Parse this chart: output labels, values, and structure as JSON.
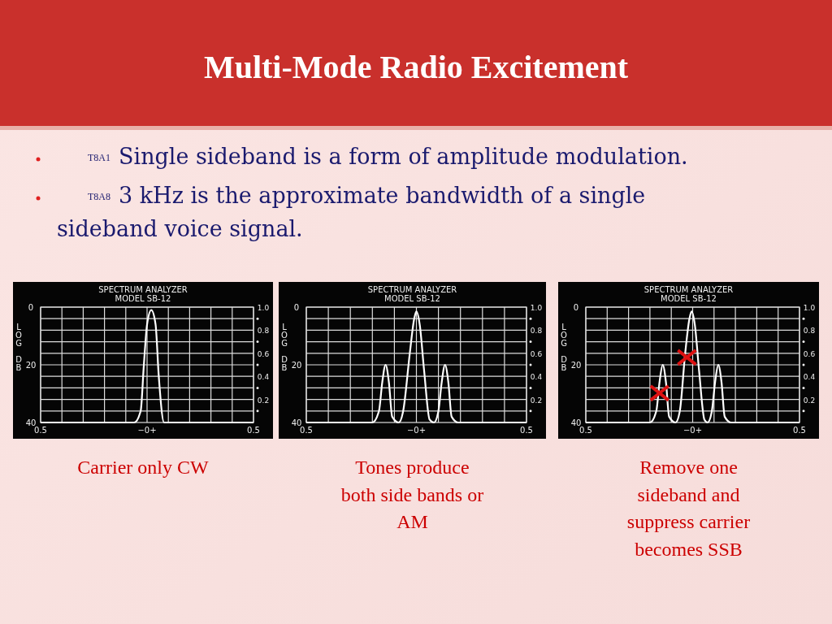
{
  "chart_data": [
    {
      "type": "other",
      "title": "Multi-Mode Radio Excitement",
      "annotations": [
        "T8A1",
        "Single sideband is a form of amplitude modulation.",
        "T8A8",
        "3 kHz is the approximate bandwidth of a single sideband voice signal."
      ]
    },
    {
      "type": "line",
      "title": "SPECTRUM ANALYZER",
      "subtitle": "MODEL SB-12",
      "ylabel": "LOG DB",
      "xlim": [
        -0.5,
        0.5
      ],
      "xticks": [
        {
          "value": -0.5,
          "label": "0.5"
        },
        {
          "value": -0.4,
          "label": null
        },
        {
          "value": -0.3,
          "label": null
        },
        {
          "value": -0.2,
          "label": null
        },
        {
          "value": -0.1,
          "label": null
        },
        {
          "value": 0,
          "label": "−0+"
        },
        {
          "value": 0.1,
          "label": null
        },
        {
          "value": 0.2,
          "label": null
        },
        {
          "value": 0.3,
          "label": null
        },
        {
          "value": 0.4,
          "label": null
        },
        {
          "value": 0.5,
          "label": "0.5"
        }
      ],
      "ylim": [
        40,
        0
      ],
      "yticks": [
        0,
        20,
        40
      ],
      "y2lim": [
        0,
        1
      ],
      "y2ticks": [
        {
          "value": 0.1,
          "label": null
        },
        {
          "value": 0.2,
          "label": "0.2"
        },
        {
          "value": 0.3,
          "label": null
        },
        {
          "value": 0.4,
          "label": "0.4"
        },
        {
          "value": 0.5,
          "label": null
        },
        {
          "value": 0.6,
          "label": "0.6"
        },
        {
          "value": 0.7,
          "label": null
        },
        {
          "value": 0.8,
          "label": "0.8"
        },
        {
          "value": 0.9,
          "label": null
        },
        {
          "value": 1,
          "label": "1.0"
        }
      ],
      "grid": true,
      "series": [
        {
          "color": "#ffffff",
          "x": [
            -0.5,
            -0.06,
            -0.03,
            -0.015,
            0,
            0.02,
            0.04,
            0.055,
            0.08,
            0.5
          ],
          "values": [
            40,
            40,
            36,
            20,
            6,
            1,
            6,
            24,
            40,
            40
          ]
        }
      ],
      "annotations": [
        "Carrier only CW"
      ]
    },
    {
      "type": "line",
      "title": "SPECTRUM ANALYZER",
      "subtitle": "MODEL SB-12",
      "ylabel": "LOG DB",
      "xlim": [
        -0.5,
        0.5
      ],
      "xticks": [
        {
          "value": -0.5,
          "label": "0.5"
        },
        {
          "value": -0.4,
          "label": null
        },
        {
          "value": -0.3,
          "label": null
        },
        {
          "value": -0.2,
          "label": null
        },
        {
          "value": -0.1,
          "label": null
        },
        {
          "value": 0,
          "label": "−0+"
        },
        {
          "value": 0.1,
          "label": null
        },
        {
          "value": 0.2,
          "label": null
        },
        {
          "value": 0.3,
          "label": null
        },
        {
          "value": 0.4,
          "label": null
        },
        {
          "value": 0.5,
          "label": "0.5"
        }
      ],
      "ylim": [
        40,
        0
      ],
      "yticks": [
        0,
        20,
        40
      ],
      "y2lim": [
        0,
        1
      ],
      "y2ticks": [
        {
          "value": 0.1,
          "label": null
        },
        {
          "value": 0.2,
          "label": "0.2"
        },
        {
          "value": 0.3,
          "label": null
        },
        {
          "value": 0.4,
          "label": "0.4"
        },
        {
          "value": 0.5,
          "label": null
        },
        {
          "value": 0.6,
          "label": "0.6"
        },
        {
          "value": 0.7,
          "label": null
        },
        {
          "value": 0.8,
          "label": "0.8"
        },
        {
          "value": 0.9,
          "label": null
        },
        {
          "value": 1,
          "label": "1.0"
        }
      ],
      "grid": true,
      "series": [
        {
          "color": "#ffffff",
          "x": [
            -0.5,
            -0.2,
            -0.17,
            -0.155,
            -0.14,
            -0.125,
            -0.11,
            -0.08,
            -0.06,
            -0.03,
            -0.01,
            0,
            0.015,
            0.035,
            0.06,
            0.08,
            0.1,
            0.115,
            0.13,
            0.145,
            0.16,
            0.19,
            0.5
          ],
          "values": [
            40,
            40,
            36,
            26,
            20,
            26,
            38,
            40,
            36,
            16,
            4,
            1.5,
            6,
            22,
            39,
            40,
            36,
            26,
            20,
            26,
            38,
            40,
            40
          ]
        }
      ],
      "annotations": [
        "Tones produce",
        "both side bands or",
        "AM"
      ]
    },
    {
      "type": "line",
      "title": "SPECTRUM ANALYZER",
      "subtitle": "MODEL SB-12",
      "ylabel": "LOG DB",
      "xlim": [
        -0.5,
        0.5
      ],
      "xticks": [
        {
          "value": -0.5,
          "label": "0.5"
        },
        {
          "value": -0.4,
          "label": null
        },
        {
          "value": -0.3,
          "label": null
        },
        {
          "value": -0.2,
          "label": null
        },
        {
          "value": -0.1,
          "label": null
        },
        {
          "value": 0,
          "label": "−0+"
        },
        {
          "value": 0.1,
          "label": null
        },
        {
          "value": 0.2,
          "label": null
        },
        {
          "value": 0.3,
          "label": null
        },
        {
          "value": 0.4,
          "label": null
        },
        {
          "value": 0.5,
          "label": "0.5"
        }
      ],
      "ylim": [
        40,
        0
      ],
      "yticks": [
        0,
        20,
        40
      ],
      "y2lim": [
        0,
        1
      ],
      "y2ticks": [
        {
          "value": 0.1,
          "label": null
        },
        {
          "value": 0.2,
          "label": "0.2"
        },
        {
          "value": 0.3,
          "label": null
        },
        {
          "value": 0.4,
          "label": "0.4"
        },
        {
          "value": 0.5,
          "label": null
        },
        {
          "value": 0.6,
          "label": "0.6"
        },
        {
          "value": 0.7,
          "label": null
        },
        {
          "value": 0.8,
          "label": "0.8"
        },
        {
          "value": 0.9,
          "label": null
        },
        {
          "value": 1,
          "label": "1.0"
        }
      ],
      "grid": true,
      "series": [
        {
          "color": "#ffffff",
          "x": [
            -0.5,
            -0.2,
            -0.17,
            -0.155,
            -0.14,
            -0.125,
            -0.11,
            -0.08,
            -0.06,
            -0.035,
            -0.015,
            -0.005,
            0.01,
            0.03,
            0.055,
            0.07,
            0.09,
            0.105,
            0.12,
            0.135,
            0.15,
            0.18,
            0.5
          ],
          "values": [
            40,
            40,
            36,
            26,
            20,
            26,
            38,
            40,
            36,
            16,
            4,
            1.5,
            6,
            22,
            39,
            40,
            36,
            26,
            20,
            26,
            38,
            40,
            40
          ]
        },
        {
          "type": "scatter",
          "marker": "cross",
          "color": "#dd1111",
          "x": [
            -0.155,
            -0.027
          ],
          "values": [
            29.8,
            17.4
          ]
        }
      ],
      "annotations": [
        "Remove one",
        "sideband and",
        "suppress carrier",
        "becomes SSB"
      ]
    }
  ]
}
